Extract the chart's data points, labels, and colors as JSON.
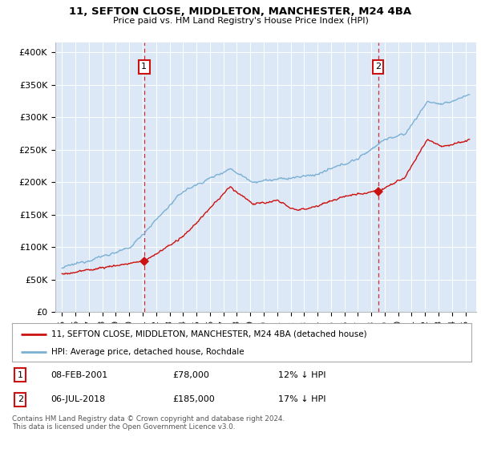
{
  "title": "11, SEFTON CLOSE, MIDDLETON, MANCHESTER, M24 4BA",
  "subtitle": "Price paid vs. HM Land Registry's House Price Index (HPI)",
  "ylabel_ticks": [
    "£0",
    "£50K",
    "£100K",
    "£150K",
    "£200K",
    "£250K",
    "£300K",
    "£350K",
    "£400K"
  ],
  "ytick_values": [
    0,
    50000,
    100000,
    150000,
    200000,
    250000,
    300000,
    350000,
    400000
  ],
  "ylim": [
    0,
    415000
  ],
  "background_color": "#dce8f5",
  "hpi_color": "#7ab0d4",
  "price_color": "#cc1111",
  "sale1_x": 2001.1,
  "sale1_y": 78000,
  "sale2_x": 2018.5,
  "sale2_y": 185000,
  "legend_label1": "11, SEFTON CLOSE, MIDDLETON, MANCHESTER, M24 4BA (detached house)",
  "legend_label2": "HPI: Average price, detached house, Rochdale",
  "ann1_label": "1",
  "ann1_date": "08-FEB-2001",
  "ann1_price": "£78,000",
  "ann1_pct": "12% ↓ HPI",
  "ann2_label": "2",
  "ann2_date": "06-JUL-2018",
  "ann2_price": "£185,000",
  "ann2_pct": "17% ↓ HPI",
  "footer": "Contains HM Land Registry data © Crown copyright and database right 2024.\nThis data is licensed under the Open Government Licence v3.0.",
  "xtick_labels": [
    "95",
    "96",
    "97",
    "98",
    "99",
    "00",
    "01",
    "02",
    "03",
    "04",
    "05",
    "06",
    "07",
    "08",
    "09",
    "10",
    "11",
    "12",
    "13",
    "14",
    "15",
    "16",
    "17",
    "18",
    "19",
    "20",
    "21",
    "22",
    "23",
    "24",
    "25"
  ],
  "xtick_years": [
    1995,
    1996,
    1997,
    1998,
    1999,
    2000,
    2001,
    2002,
    2003,
    2004,
    2005,
    2006,
    2007,
    2008,
    2009,
    2010,
    2011,
    2012,
    2013,
    2014,
    2015,
    2016,
    2017,
    2018,
    2019,
    2020,
    2021,
    2022,
    2023,
    2024,
    2025
  ]
}
